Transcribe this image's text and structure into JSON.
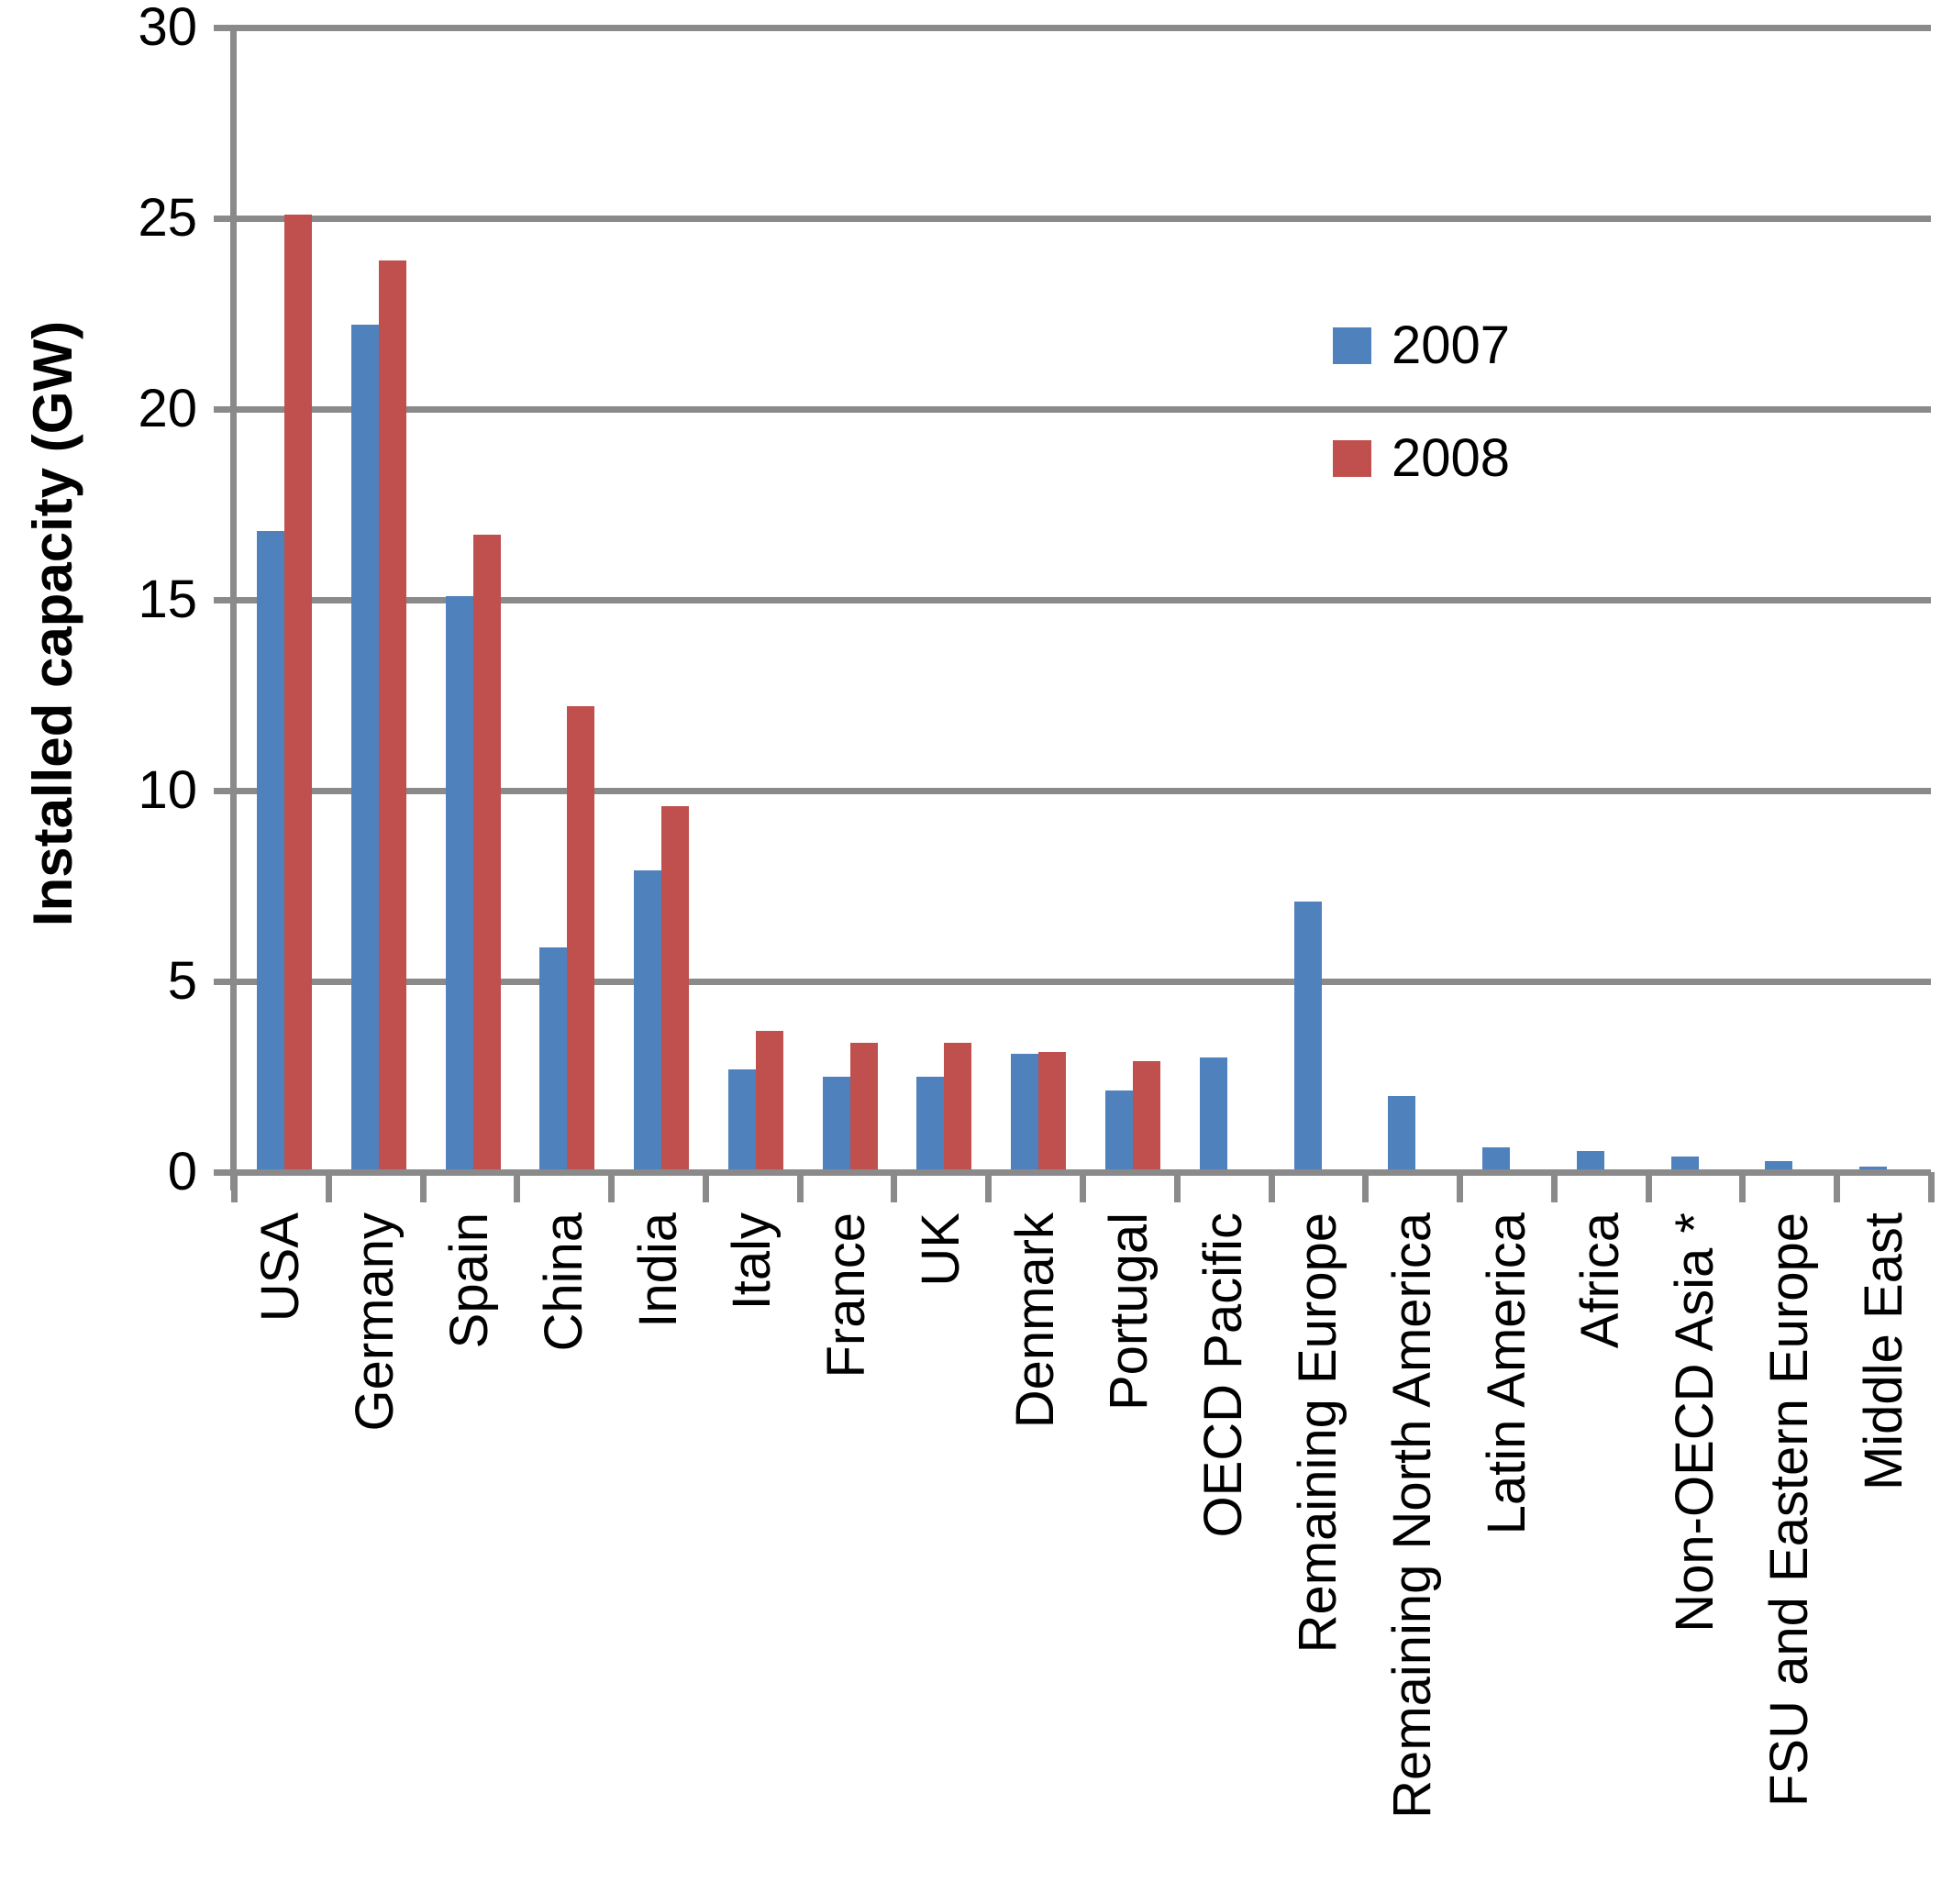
{
  "chart_data": {
    "type": "bar",
    "title": "",
    "xlabel": "",
    "ylabel": "Installed capacity (GW)",
    "ylim": [
      0,
      30
    ],
    "yticks": [
      0,
      5,
      10,
      15,
      20,
      25,
      30
    ],
    "grid": "horizontal",
    "legend_position": "inside-upper-right",
    "categories": [
      "USA",
      "Germany",
      "Spain",
      "China",
      "India",
      "Italy",
      "France",
      "UK",
      "Denmark",
      "Portugal",
      "OECD Pacific",
      "Remaining Europe",
      "Remaining North America",
      "Latin America",
      "Africa",
      "Non-OECD Asia *",
      "FSU and Eastern Europe",
      "Middle East"
    ],
    "series": [
      {
        "name": "2007",
        "color": "#4F81BD",
        "values": [
          16.8,
          22.2,
          15.1,
          5.9,
          7.9,
          2.7,
          2.5,
          2.5,
          3.1,
          2.15,
          3.0,
          7.1,
          2.0,
          0.65,
          0.55,
          0.4,
          0.3,
          0.15
        ]
      },
      {
        "name": "2008",
        "color": "#C0504D",
        "values": [
          25.1,
          23.9,
          16.7,
          12.2,
          9.6,
          3.7,
          3.4,
          3.4,
          3.15,
          2.9,
          null,
          null,
          null,
          null,
          null,
          null,
          null,
          null
        ]
      }
    ]
  },
  "colors": {
    "axis_gray": "#8A8A8A",
    "text": "#000000",
    "background": "#FFFFFF"
  }
}
